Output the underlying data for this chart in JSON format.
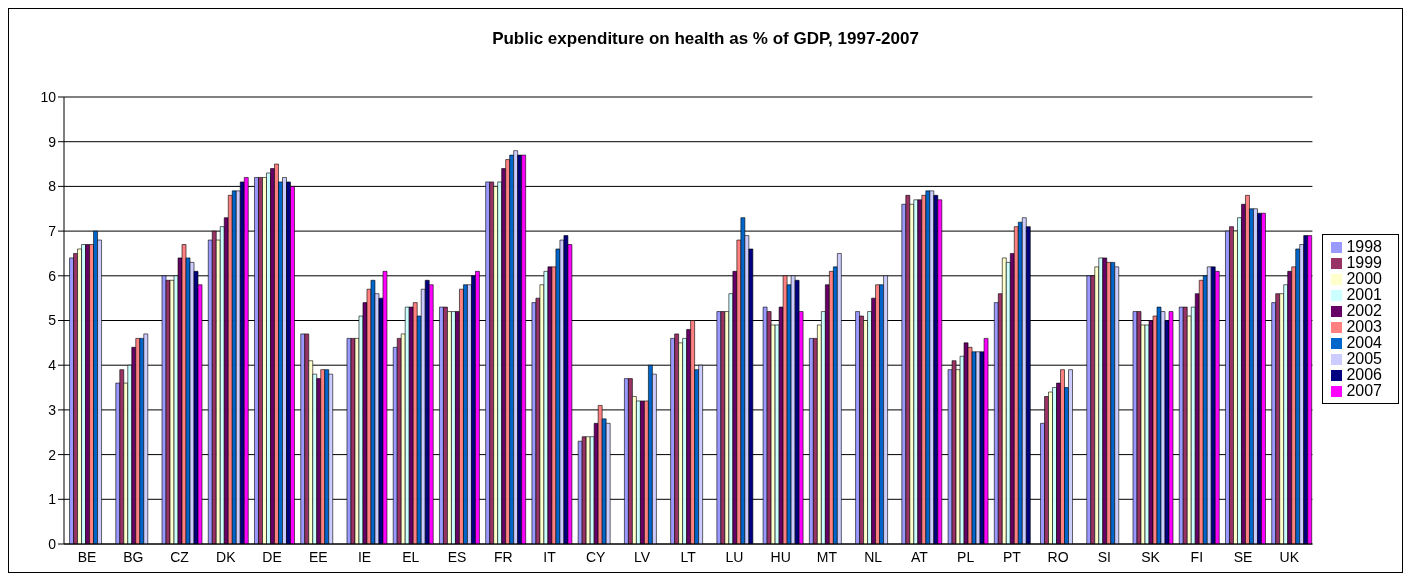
{
  "chart_data": {
    "type": "bar",
    "title": "Public expenditure on health as % of GDP, 1997-2007",
    "categories": [
      "BE",
      "BG",
      "CZ",
      "DK",
      "DE",
      "EE",
      "IE",
      "EL",
      "ES",
      "FR",
      "IT",
      "CY",
      "LV",
      "LT",
      "LU",
      "HU",
      "MT",
      "NL",
      "AT",
      "PL",
      "PT",
      "RO",
      "SI",
      "SK",
      "FI",
      "SE",
      "UK"
    ],
    "series": [
      {
        "name": "1998",
        "color": "#9999ff",
        "values": [
          6.4,
          3.6,
          6.0,
          6.8,
          8.2,
          4.7,
          4.6,
          4.4,
          5.3,
          8.1,
          5.4,
          2.3,
          3.7,
          4.6,
          5.2,
          5.3,
          4.6,
          5.2,
          7.6,
          3.9,
          5.4,
          2.7,
          6.0,
          5.2,
          5.3,
          7.0,
          5.4
        ]
      },
      {
        "name": "1999",
        "color": "#993366",
        "values": [
          6.5,
          3.9,
          5.9,
          7.0,
          8.2,
          4.7,
          4.6,
          4.6,
          5.3,
          8.1,
          5.5,
          2.4,
          3.7,
          4.7,
          5.2,
          5.2,
          4.6,
          5.1,
          7.8,
          4.1,
          5.6,
          3.3,
          6.0,
          5.2,
          5.3,
          7.1,
          5.6
        ]
      },
      {
        "name": "2000",
        "color": "#ffffcc",
        "values": [
          6.6,
          3.6,
          5.9,
          6.8,
          8.2,
          4.1,
          4.6,
          4.7,
          5.2,
          8.0,
          5.8,
          2.4,
          3.3,
          4.5,
          5.2,
          4.9,
          4.9,
          5.0,
          7.6,
          3.9,
          6.4,
          3.4,
          6.2,
          4.9,
          5.1,
          7.0,
          5.6
        ]
      },
      {
        "name": "2001",
        "color": "#ccffff",
        "values": [
          6.7,
          4.0,
          6.0,
          7.1,
          8.3,
          3.8,
          5.1,
          5.3,
          5.2,
          8.1,
          6.1,
          2.4,
          3.2,
          4.6,
          5.6,
          4.9,
          5.2,
          5.2,
          7.7,
          4.2,
          6.3,
          3.5,
          6.4,
          4.9,
          5.3,
          7.3,
          5.8
        ]
      },
      {
        "name": "2002",
        "color": "#660066",
        "values": [
          6.7,
          4.4,
          6.4,
          7.3,
          8.4,
          3.7,
          5.4,
          5.3,
          5.2,
          8.4,
          6.2,
          2.7,
          3.2,
          4.8,
          6.1,
          5.3,
          5.8,
          5.5,
          7.7,
          4.5,
          6.5,
          3.6,
          6.4,
          5.0,
          5.6,
          7.6,
          6.1
        ]
      },
      {
        "name": "2003",
        "color": "#ff8080",
        "values": [
          6.7,
          4.6,
          6.7,
          7.8,
          8.5,
          3.9,
          5.7,
          5.4,
          5.7,
          8.6,
          6.2,
          3.1,
          3.2,
          5.0,
          6.8,
          6.0,
          6.1,
          5.8,
          7.8,
          4.4,
          7.1,
          3.9,
          6.3,
          5.1,
          5.9,
          7.8,
          6.2
        ]
      },
      {
        "name": "2004",
        "color": "#0066cc",
        "values": [
          7.0,
          4.6,
          6.4,
          7.9,
          8.1,
          3.9,
          5.9,
          5.1,
          5.8,
          8.7,
          6.6,
          2.8,
          4.0,
          3.9,
          7.3,
          5.8,
          6.2,
          5.8,
          7.9,
          4.3,
          7.2,
          3.5,
          6.3,
          5.3,
          6.0,
          7.5,
          6.6
        ]
      },
      {
        "name": "2005",
        "color": "#ccccff",
        "values": [
          6.8,
          4.7,
          6.3,
          7.9,
          8.2,
          3.8,
          5.6,
          5.7,
          5.8,
          8.8,
          6.8,
          2.7,
          3.8,
          4.0,
          6.9,
          6.0,
          6.5,
          6.0,
          7.9,
          4.3,
          7.3,
          3.9,
          6.2,
          5.2,
          6.2,
          7.5,
          6.7
        ]
      },
      {
        "name": "2006",
        "color": "#000080",
        "values": [
          null,
          null,
          6.1,
          8.1,
          8.1,
          null,
          5.5,
          5.9,
          6.0,
          8.7,
          6.9,
          null,
          null,
          null,
          6.6,
          5.9,
          null,
          null,
          7.8,
          4.3,
          7.1,
          null,
          null,
          5.0,
          6.2,
          7.4,
          6.9
        ]
      },
      {
        "name": "2007",
        "color": "#ff00ff",
        "values": [
          null,
          null,
          5.8,
          8.2,
          8.0,
          null,
          6.1,
          5.8,
          6.1,
          8.7,
          6.7,
          null,
          null,
          null,
          null,
          5.2,
          null,
          null,
          7.7,
          4.6,
          null,
          null,
          null,
          5.2,
          6.1,
          7.4,
          6.9
        ]
      }
    ],
    "ylim": [
      0,
      10
    ],
    "yticks": [
      0,
      1,
      2,
      3,
      4,
      5,
      6,
      7,
      8,
      9,
      10
    ],
    "grid": "y",
    "legend": "right"
  }
}
